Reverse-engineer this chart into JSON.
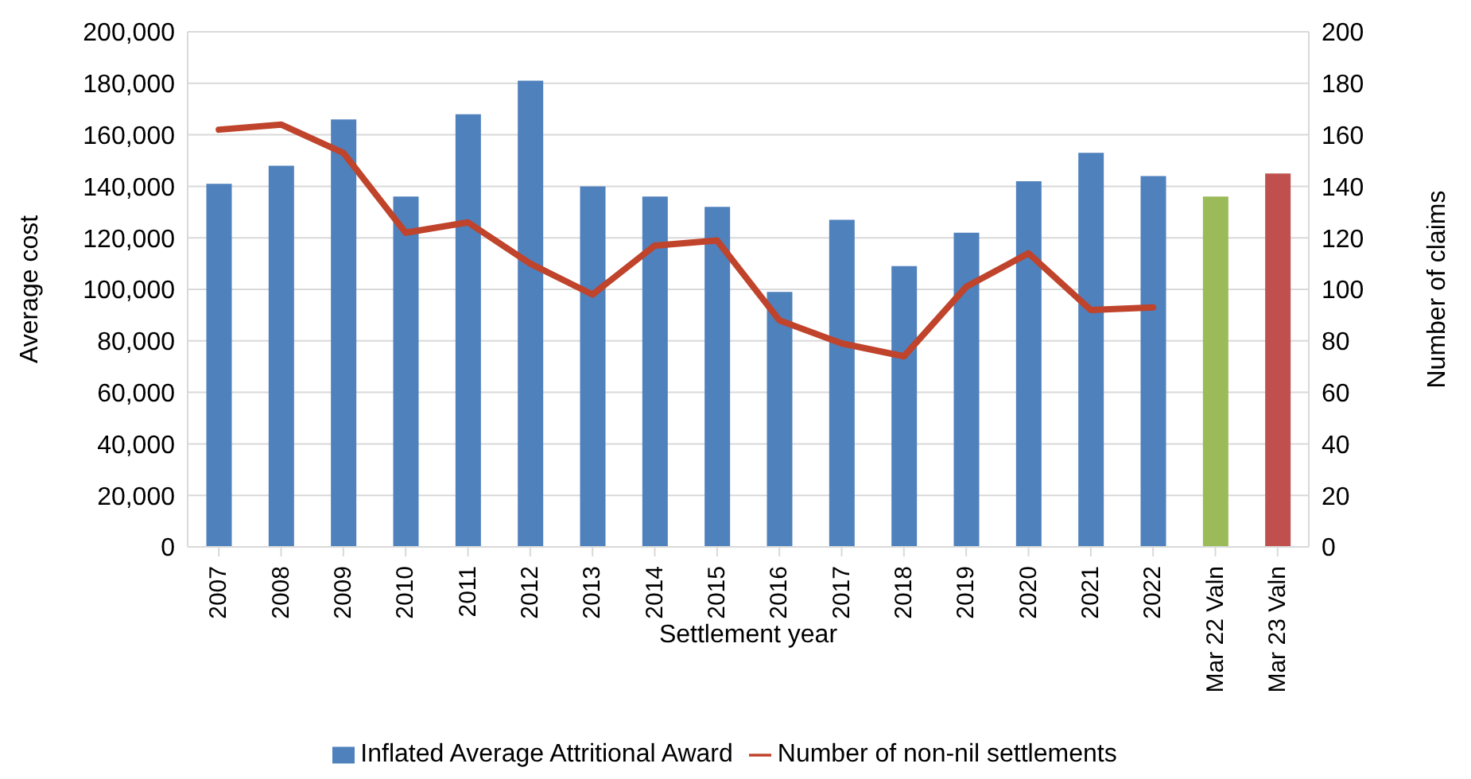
{
  "chart_data": {
    "type": "bar",
    "xlabel": "Settlement year",
    "ylabel": "Average cost",
    "y2label": "Number of claims",
    "categories": [
      "2007",
      "2008",
      "2009",
      "2010",
      "2011",
      "2012",
      "2013",
      "2014",
      "2015",
      "2016",
      "2017",
      "2018",
      "2019",
      "2020",
      "2021",
      "2022",
      "Mar 22 Valn",
      "Mar 23 Valn"
    ],
    "series": [
      {
        "name": "Inflated Average Attritional Award",
        "color": "#4f81bd",
        "colors": [
          "#4f81bd",
          "#4f81bd",
          "#4f81bd",
          "#4f81bd",
          "#4f81bd",
          "#4f81bd",
          "#4f81bd",
          "#4f81bd",
          "#4f81bd",
          "#4f81bd",
          "#4f81bd",
          "#4f81bd",
          "#4f81bd",
          "#4f81bd",
          "#4f81bd",
          "#4f81bd",
          "#9bbb59",
          "#c0504d"
        ],
        "values": [
          141000,
          148000,
          166000,
          136000,
          168000,
          181000,
          140000,
          136000,
          132000,
          99000,
          127000,
          109000,
          122000,
          142000,
          153000,
          144000,
          136000,
          145000
        ]
      },
      {
        "name": "Number of non-nil settlements",
        "type": "line",
        "axis": "y2",
        "color": "#c0432b",
        "values": [
          162,
          164,
          153,
          122,
          126,
          110,
          98,
          117,
          119,
          88,
          79,
          74,
          101,
          114,
          92,
          93,
          null,
          null
        ]
      }
    ],
    "ylim": [
      0,
      200000
    ],
    "yticks": [
      0,
      {
        "value": 20000,
        "label": "20,000"
      },
      {
        "value": 40000,
        "label": "40,000"
      },
      {
        "value": 60000,
        "label": "60,000"
      },
      {
        "value": 80000,
        "label": "80,000"
      },
      {
        "value": 100000,
        "label": "100,000"
      },
      {
        "value": 120000,
        "label": "120,000"
      },
      {
        "value": 140000,
        "label": "140,000"
      },
      {
        "value": 160000,
        "label": "160,000"
      },
      {
        "value": 180000,
        "label": "180,000"
      },
      {
        "value": 200000,
        "label": "200,000"
      }
    ],
    "y2lim": [
      0,
      200
    ],
    "y2ticks": [
      0,
      20,
      40,
      60,
      80,
      100,
      120,
      140,
      160,
      180,
      200
    ],
    "grid": "y",
    "legend": "bottom",
    "marker": "none",
    "line_style": "solid"
  }
}
